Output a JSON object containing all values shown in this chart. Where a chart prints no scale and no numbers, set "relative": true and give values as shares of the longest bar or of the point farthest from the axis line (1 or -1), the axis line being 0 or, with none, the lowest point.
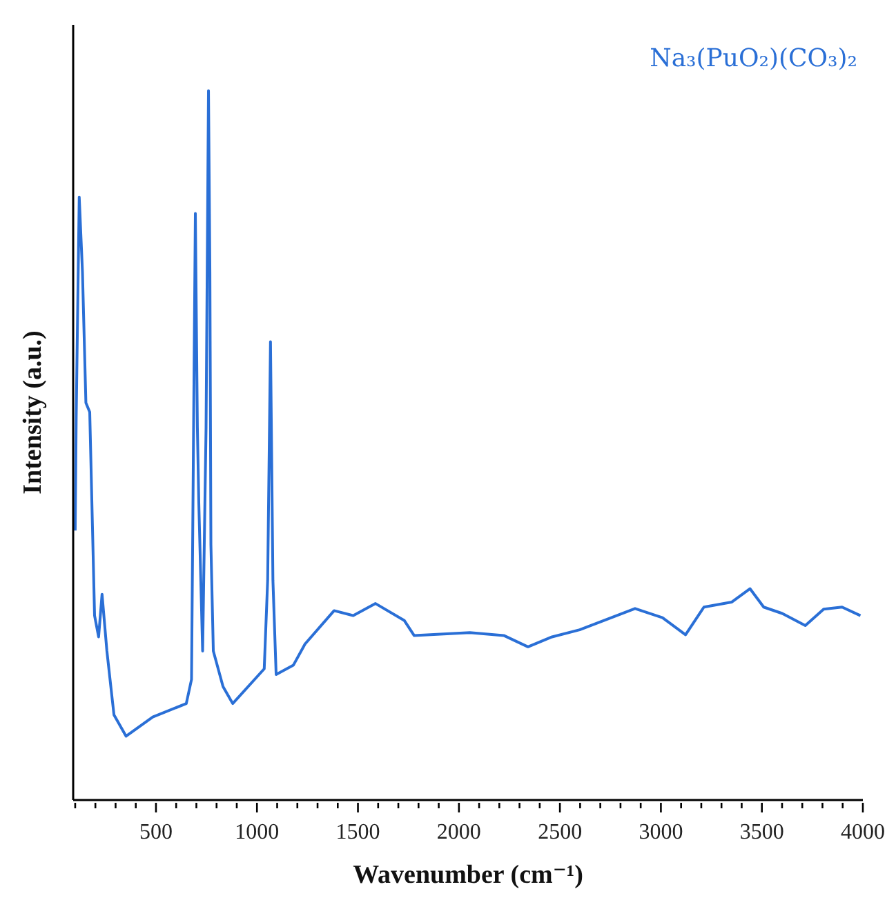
{
  "chart_data": {
    "type": "line",
    "title": "Na₃(PuO₂)(CO₃)₂",
    "xlabel": "Wavenumber (cm⁻¹)",
    "ylabel": "Intensity (a.u.)",
    "relative": true,
    "legend": false,
    "grid": false,
    "marker": "none",
    "line_style": "solid",
    "xlim": [
      90,
      4000
    ],
    "xticks": [
      {
        "value": 100,
        "label": null
      },
      {
        "value": 200,
        "label": null
      },
      {
        "value": 300,
        "label": null
      },
      {
        "value": 400,
        "label": null
      },
      500,
      {
        "value": 600,
        "label": null
      },
      {
        "value": 700,
        "label": null
      },
      {
        "value": 800,
        "label": null
      },
      {
        "value": 900,
        "label": null
      },
      1000,
      {
        "value": 1100,
        "label": null
      },
      {
        "value": 1200,
        "label": null
      },
      {
        "value": 1300,
        "label": null
      },
      {
        "value": 1400,
        "label": null
      },
      1500,
      {
        "value": 1600,
        "label": null
      },
      {
        "value": 1700,
        "label": null
      },
      {
        "value": 1800,
        "label": null
      },
      {
        "value": 1900,
        "label": null
      },
      2000,
      {
        "value": 2100,
        "label": null
      },
      {
        "value": 2200,
        "label": null
      },
      {
        "value": 2300,
        "label": null
      },
      {
        "value": 2400,
        "label": null
      },
      2500,
      {
        "value": 2600,
        "label": null
      },
      {
        "value": 2700,
        "label": null
      },
      {
        "value": 2800,
        "label": null
      },
      {
        "value": 2900,
        "label": null
      },
      3000,
      {
        "value": 3100,
        "label": null
      },
      {
        "value": 3200,
        "label": null
      },
      {
        "value": 3300,
        "label": null
      },
      {
        "value": 3400,
        "label": null
      },
      3500,
      {
        "value": 3600,
        "label": null
      },
      {
        "value": 3700,
        "label": null
      },
      {
        "value": 3800,
        "label": null
      },
      {
        "value": 3900,
        "label": null
      },
      4000
    ],
    "x": [
      100,
      105,
      120,
      136,
      153,
      172,
      196,
      216,
      233,
      257,
      292,
      352,
      484,
      650,
      676,
      695,
      705,
      712,
      731,
      748,
      760,
      767,
      772,
      784,
      832,
      880,
      1036,
      1053,
      1067,
      1079,
      1095,
      1180,
      1238,
      1382,
      1477,
      1587,
      1730,
      1778,
      2054,
      2222,
      2342,
      2461,
      2598,
      2872,
      3008,
      3122,
      3213,
      3350,
      3441,
      3509,
      3601,
      3715,
      3806,
      3897,
      3988
    ],
    "series": [
      {
        "color": "#2a6fd6",
        "values": [
          0.38,
          0.54,
          0.85,
          0.745,
          0.56,
          0.547,
          0.26,
          0.23,
          0.29,
          0.21,
          0.12,
          0.09,
          0.117,
          0.136,
          0.17,
          0.827,
          0.525,
          0.42,
          0.21,
          0.525,
          1.0,
          0.745,
          0.36,
          0.21,
          0.16,
          0.136,
          0.185,
          0.31,
          0.646,
          0.31,
          0.177,
          0.19,
          0.22,
          0.267,
          0.26,
          0.277,
          0.253,
          0.232,
          0.236,
          0.232,
          0.216,
          0.23,
          0.24,
          0.27,
          0.257,
          0.233,
          0.272,
          0.279,
          0.298,
          0.272,
          0.263,
          0.246,
          0.269,
          0.272,
          0.26
        ]
      }
    ]
  }
}
